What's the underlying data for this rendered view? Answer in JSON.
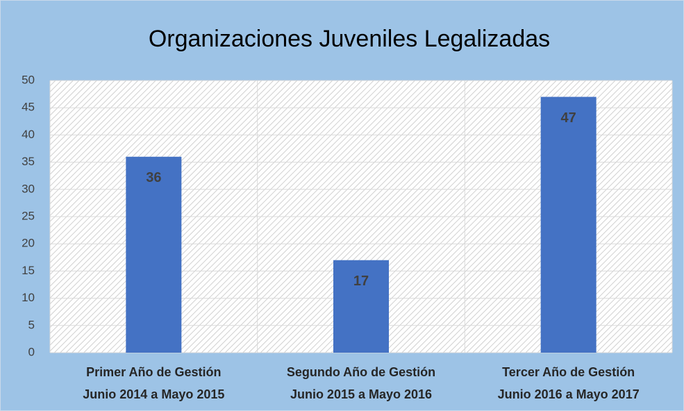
{
  "chart_data": {
    "type": "bar",
    "title": "Organizaciones Juveniles Legalizadas",
    "categories": [
      [
        "Primer Año de Gestión",
        "Junio 2014 a Mayo 2015"
      ],
      [
        "Segundo Año de Gestión",
        "Junio 2015 a Mayo 2016"
      ],
      [
        "Tercer Año de Gestión",
        "Junio 2016 a Mayo 2017"
      ]
    ],
    "values": [
      36,
      17,
      47
    ],
    "color": "#4472c4",
    "ylim": [
      0,
      50
    ],
    "yticks": [
      0,
      5,
      10,
      15,
      20,
      25,
      30,
      35,
      40,
      45,
      50
    ],
    "grid": true
  }
}
